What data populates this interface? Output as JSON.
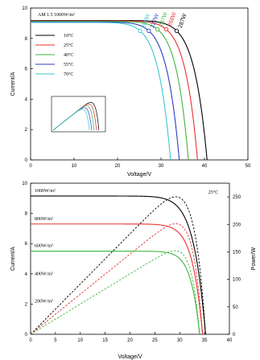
{
  "chart_data": [
    {
      "type": "line",
      "title": "",
      "xlabel": "Voltage/V",
      "ylabel": "Current/A",
      "xlim": [
        0,
        50
      ],
      "ylim": [
        0,
        10
      ],
      "x_ticks": [
        "0",
        "10",
        "20",
        "30",
        "40",
        "50"
      ],
      "y_ticks": [
        "0",
        "2",
        "4",
        "6",
        "8",
        "10"
      ],
      "annotation": "AM 1.5 1000W/m²",
      "legend_placement": "top-left",
      "series": [
        {
          "name": "10°C",
          "color": "#000000",
          "isc": 9.18,
          "voc": 40.6,
          "vmp": 33.6,
          "imp": 8.5,
          "power_label": "287W"
        },
        {
          "name": "25°C",
          "color": "#e8302f",
          "isc": 9.15,
          "voc": 38.4,
          "vmp": 31.2,
          "imp": 8.6,
          "power_label": "268W"
        },
        {
          "name": "40°C",
          "color": "#3fb63f",
          "isc": 9.12,
          "voc": 36.3,
          "vmp": 29.2,
          "imp": 8.6,
          "power_label": "247W"
        },
        {
          "name": "55°C",
          "color": "#2b3fbf",
          "isc": 9.08,
          "voc": 34.2,
          "vmp": 27.2,
          "imp": 8.5,
          "power_label": "227W"
        },
        {
          "name": "70°C",
          "color": "#3ec6cf",
          "isc": 9.05,
          "voc": 32.2,
          "vmp": 25.2,
          "imp": 8.5,
          "power_label": "208W"
        }
      ]
    },
    {
      "type": "line",
      "title": "",
      "xlabel": "Voltage/V",
      "ylabel": "Current/A",
      "ylabel2": "Power/W",
      "xlim": [
        0,
        40
      ],
      "ylim": [
        0,
        10
      ],
      "y2lim": [
        0,
        275
      ],
      "x_ticks": [
        "0",
        "5",
        "10",
        "15",
        "20",
        "25",
        "30",
        "35",
        "40"
      ],
      "y_ticks": [
        "0",
        "2",
        "4",
        "6",
        "8",
        "10"
      ],
      "y2_ticks": [
        "0",
        "50",
        "100",
        "150",
        "200",
        "250"
      ],
      "annotation": "25°C",
      "series": [
        {
          "name": "1000W/m²",
          "color": "#000000",
          "isc": 9.15,
          "voc": 35.2,
          "pmax": 250
        },
        {
          "name": "800W/m²",
          "color": "#e8302f",
          "isc": 7.3,
          "voc": 34.6,
          "pmax": 200
        },
        {
          "name": "600W/m²",
          "color": "#3fb63f",
          "isc": 5.5,
          "voc": 34.0,
          "pmax": 150
        },
        {
          "name": "400W/m²",
          "color": "#2b3fbf",
          "isc": 3.65,
          "voc": 33.2,
          "pmax": 100
        },
        {
          "name": "200W/m²",
          "color": "#3ec6cf",
          "isc": 1.83,
          "voc": 32.2,
          "pmax": 49
        }
      ]
    }
  ]
}
